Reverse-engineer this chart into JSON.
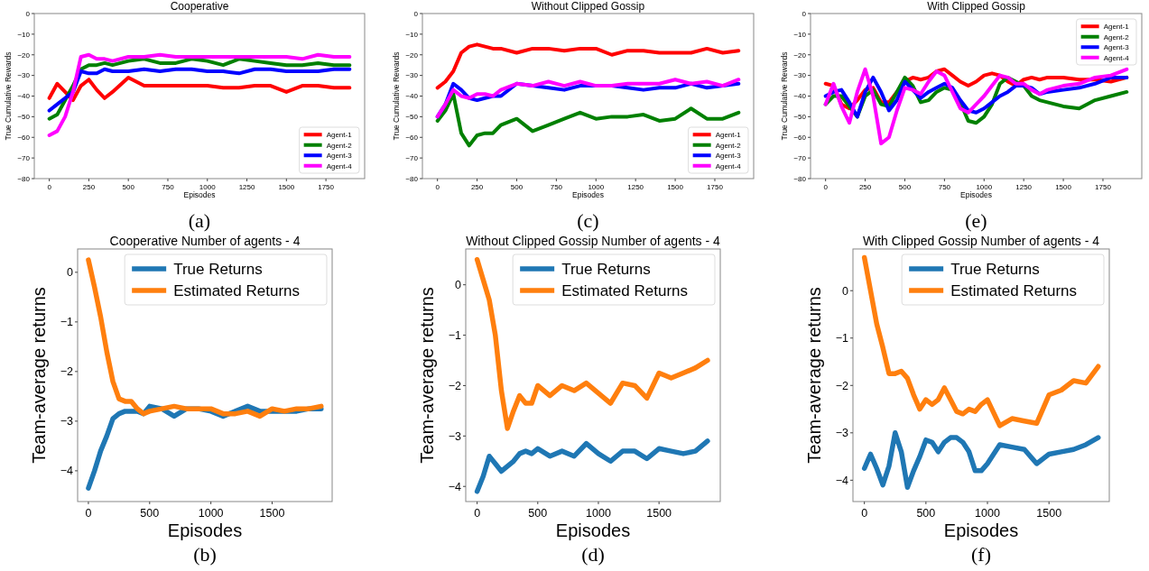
{
  "chart_data": [
    {
      "type": "line",
      "title": "Cooperative",
      "xlabel": "Episodes",
      "ylabel": "True Cumulative Rewards",
      "legend": "bottom right",
      "annotations": [
        "(a)"
      ],
      "xlim": [
        -95,
        1995
      ],
      "xticks": [
        0,
        250,
        500,
        750,
        1000,
        1250,
        1500,
        1750
      ],
      "ylim": [
        -80,
        0
      ],
      "yticks": [
        -80,
        -70,
        -60,
        -50,
        -40,
        -30,
        -20,
        -10,
        0
      ],
      "x": [
        0,
        50,
        100,
        150,
        200,
        250,
        300,
        350,
        400,
        500,
        600,
        700,
        800,
        900,
        1000,
        1100,
        1200,
        1300,
        1400,
        1500,
        1600,
        1700,
        1800,
        1900
      ],
      "series": [
        {
          "name": "Agent-1",
          "color": "#ff0000",
          "values": [
            -41,
            -34,
            -38,
            -42,
            -35,
            -32,
            -37,
            -41,
            -38,
            -31,
            -35,
            -35,
            -35,
            -35,
            -35,
            -36,
            -36,
            -35,
            -35,
            -38,
            -35,
            -35,
            -36,
            -36
          ]
        },
        {
          "name": "Agent-2",
          "color": "#008000",
          "values": [
            -51,
            -49,
            -42,
            -35,
            -27,
            -25,
            -25,
            -24,
            -25,
            -23,
            -22,
            -24,
            -24,
            -22,
            -23,
            -25,
            -22,
            -23,
            -24,
            -25,
            -25,
            -24,
            -25,
            -25
          ]
        },
        {
          "name": "Agent-3",
          "color": "#0000ff",
          "values": [
            -47,
            -44,
            -41,
            -38,
            -28,
            -29,
            -29,
            -27,
            -28,
            -28,
            -27,
            -28,
            -27,
            -27,
            -28,
            -28,
            -29,
            -27,
            -27,
            -28,
            -28,
            -28,
            -27,
            -27
          ]
        },
        {
          "name": "Agent-4",
          "color": "#ff00ff",
          "values": [
            -59,
            -57,
            -50,
            -38,
            -21,
            -20,
            -22,
            -22,
            -23,
            -21,
            -21,
            -20,
            -21,
            -21,
            -21,
            -21,
            -21,
            -21,
            -21,
            -21,
            -22,
            -20,
            -21,
            -21
          ]
        }
      ]
    },
    {
      "type": "line",
      "title": "Without Clipped Gossip",
      "xlabel": "Episodes",
      "ylabel": "True Cumulative Rewards",
      "legend": "bottom right",
      "annotations": [
        "(c)"
      ],
      "xlim": [
        -95,
        1995
      ],
      "xticks": [
        0,
        250,
        500,
        750,
        1000,
        1250,
        1500,
        1750
      ],
      "ylim": [
        -80,
        0
      ],
      "yticks": [
        -80,
        -70,
        -60,
        -50,
        -40,
        -30,
        -20,
        -10,
        0
      ],
      "x": [
        0,
        50,
        100,
        150,
        200,
        250,
        300,
        350,
        400,
        500,
        600,
        700,
        800,
        900,
        1000,
        1100,
        1200,
        1300,
        1400,
        1500,
        1600,
        1700,
        1800,
        1900
      ],
      "series": [
        {
          "name": "Agent-1",
          "color": "#ff0000",
          "values": [
            -36,
            -33,
            -28,
            -19,
            -16,
            -15,
            -16,
            -17,
            -17,
            -19,
            -17,
            -17,
            -18,
            -17,
            -17,
            -20,
            -18,
            -18,
            -19,
            -19,
            -19,
            -17,
            -19,
            -18
          ]
        },
        {
          "name": "Agent-2",
          "color": "#008000",
          "values": [
            -52,
            -47,
            -39,
            -58,
            -64,
            -59,
            -58,
            -58,
            -54,
            -51,
            -57,
            -54,
            -51,
            -48,
            -51,
            -50,
            -50,
            -49,
            -52,
            -51,
            -46,
            -51,
            -51,
            -48
          ]
        },
        {
          "name": "Agent-3",
          "color": "#0000ff",
          "values": [
            -50,
            -44,
            -34,
            -37,
            -41,
            -42,
            -41,
            -40,
            -40,
            -34,
            -35,
            -36,
            -37,
            -35,
            -35,
            -35,
            -36,
            -37,
            -36,
            -36,
            -34,
            -36,
            -35,
            -34
          ]
        },
        {
          "name": "Agent-4",
          "color": "#ff00ff",
          "values": [
            -50,
            -44,
            -37,
            -40,
            -41,
            -39,
            -39,
            -40,
            -37,
            -34,
            -35,
            -33,
            -35,
            -33,
            -35,
            -35,
            -34,
            -34,
            -34,
            -32,
            -34,
            -33,
            -35,
            -32
          ]
        }
      ]
    },
    {
      "type": "line",
      "title": "With Clipped Gossip",
      "xlabel": "Episodes",
      "ylabel": "True Cumulative Rewards",
      "legend": "top right",
      "annotations": [
        "(e)"
      ],
      "xlim": [
        -95,
        1995
      ],
      "xticks": [
        0,
        250,
        500,
        750,
        1000,
        1250,
        1500,
        1750
      ],
      "ylim": [
        -80,
        0
      ],
      "yticks": [
        -80,
        -70,
        -60,
        -50,
        -40,
        -30,
        -20,
        -10,
        0
      ],
      "x": [
        0,
        50,
        100,
        150,
        200,
        250,
        300,
        350,
        400,
        450,
        500,
        550,
        600,
        650,
        700,
        750,
        800,
        850,
        900,
        950,
        1000,
        1050,
        1100,
        1150,
        1200,
        1250,
        1300,
        1350,
        1400,
        1500,
        1600,
        1700,
        1800,
        1900
      ],
      "series": [
        {
          "name": "Agent-1",
          "color": "#ff0000",
          "values": [
            -34,
            -35,
            -44,
            -46,
            -42,
            -37,
            -36,
            -43,
            -43,
            -38,
            -33,
            -31,
            -32,
            -31,
            -28,
            -27,
            -30,
            -33,
            -35,
            -33,
            -30,
            -29,
            -30,
            -33,
            -35,
            -32,
            -31,
            -32,
            -31,
            -31,
            -32,
            -32,
            -33,
            -31
          ]
        },
        {
          "name": "Agent-2",
          "color": "#008000",
          "values": [
            -44,
            -40,
            -40,
            -45,
            -50,
            -40,
            -37,
            -44,
            -45,
            -38,
            -31,
            -35,
            -43,
            -42,
            -38,
            -36,
            -37,
            -43,
            -52,
            -53,
            -50,
            -44,
            -34,
            -31,
            -33,
            -35,
            -40,
            -42,
            -43,
            -45,
            -46,
            -42,
            -40,
            -38
          ]
        },
        {
          "name": "Agent-3",
          "color": "#0000ff",
          "values": [
            -40,
            -38,
            -37,
            -43,
            -50,
            -38,
            -31,
            -38,
            -47,
            -42,
            -33,
            -37,
            -41,
            -38,
            -36,
            -34,
            -36,
            -42,
            -47,
            -48,
            -46,
            -43,
            -40,
            -38,
            -35,
            -35,
            -36,
            -39,
            -38,
            -37,
            -36,
            -34,
            -31,
            -31
          ]
        },
        {
          "name": "Agent-4",
          "color": "#ff00ff",
          "values": [
            -44,
            -34,
            -45,
            -53,
            -38,
            -27,
            -40,
            -63,
            -60,
            -47,
            -36,
            -37,
            -39,
            -33,
            -28,
            -30,
            -38,
            -46,
            -48,
            -44,
            -40,
            -35,
            -30,
            -31,
            -34,
            -34,
            -37,
            -39,
            -37,
            -35,
            -34,
            -31,
            -30,
            -27
          ]
        }
      ]
    },
    {
      "type": "line",
      "title": "Cooperative Number of agents - 4",
      "xlabel": "Episodes",
      "ylabel": "Team-average returns",
      "legend": "top right",
      "annotations": [
        "(b)"
      ],
      "xlim": [
        -88,
        1990
      ],
      "xticks": [
        0,
        500,
        1000,
        1500
      ],
      "ylim": [
        -4.62,
        0.47
      ],
      "yticks": [
        -4,
        -3,
        -2,
        -1,
        0
      ],
      "x": [
        0,
        50,
        100,
        150,
        200,
        250,
        300,
        350,
        400,
        450,
        500,
        600,
        700,
        800,
        900,
        1000,
        1100,
        1200,
        1300,
        1400,
        1500,
        1600,
        1700,
        1800,
        1900
      ],
      "series": [
        {
          "name": "True Returns",
          "color": "#1f77b4",
          "values": [
            -4.35,
            -4.0,
            -3.6,
            -3.3,
            -2.95,
            -2.85,
            -2.8,
            -2.8,
            -2.8,
            -2.85,
            -2.7,
            -2.75,
            -2.9,
            -2.75,
            -2.75,
            -2.8,
            -2.9,
            -2.8,
            -2.7,
            -2.8,
            -2.8,
            -2.8,
            -2.8,
            -2.75,
            -2.75
          ]
        },
        {
          "name": "Estimated Returns",
          "color": "#ff7f0e",
          "values": [
            0.25,
            -0.3,
            -0.9,
            -1.6,
            -2.2,
            -2.55,
            -2.6,
            -2.6,
            -2.75,
            -2.85,
            -2.8,
            -2.75,
            -2.7,
            -2.75,
            -2.75,
            -2.75,
            -2.85,
            -2.85,
            -2.8,
            -2.9,
            -2.75,
            -2.8,
            -2.75,
            -2.75,
            -2.7
          ]
        }
      ]
    },
    {
      "type": "line",
      "title": "Without Clipped Gossip Number of agents - 4",
      "xlabel": "Episodes",
      "ylabel": "Team-average returns",
      "legend": "top right",
      "annotations": [
        "(d)"
      ],
      "xlim": [
        -94,
        2005
      ],
      "xticks": [
        0,
        500,
        1000,
        1500
      ],
      "ylim": [
        -4.3,
        0.71
      ],
      "yticks": [
        -4,
        -3,
        -2,
        -1,
        0
      ],
      "x": [
        0,
        50,
        100,
        150,
        200,
        250,
        300,
        350,
        400,
        450,
        500,
        600,
        700,
        800,
        900,
        1000,
        1100,
        1200,
        1300,
        1400,
        1500,
        1600,
        1700,
        1800,
        1900
      ],
      "series": [
        {
          "name": "True Returns",
          "color": "#1f77b4",
          "values": [
            -4.1,
            -3.8,
            -3.4,
            -3.55,
            -3.7,
            -3.6,
            -3.5,
            -3.35,
            -3.3,
            -3.35,
            -3.25,
            -3.4,
            -3.3,
            -3.4,
            -3.15,
            -3.35,
            -3.5,
            -3.3,
            -3.3,
            -3.45,
            -3.25,
            -3.3,
            -3.35,
            -3.3,
            -3.1
          ]
        },
        {
          "name": "Estimated Returns",
          "color": "#ff7f0e",
          "values": [
            0.5,
            0.1,
            -0.3,
            -1.0,
            -2.1,
            -2.85,
            -2.5,
            -2.2,
            -2.35,
            -2.35,
            -2.0,
            -2.2,
            -2.0,
            -2.1,
            -1.95,
            -2.15,
            -2.35,
            -1.95,
            -2.0,
            -2.25,
            -1.75,
            -1.85,
            -1.75,
            -1.65,
            -1.5
          ]
        }
      ]
    },
    {
      "type": "line",
      "title": "With Clipped Gossip Number of agents - 4",
      "xlabel": "Episodes",
      "ylabel": "Team-average returns",
      "legend": "top right",
      "annotations": [
        "(f)"
      ],
      "xlim": [
        -93,
        1990
      ],
      "xticks": [
        0,
        500,
        1000,
        1500
      ],
      "ylim": [
        -4.45,
        0.88
      ],
      "yticks": [
        -4,
        -3,
        -2,
        -1,
        0
      ],
      "x": [
        0,
        50,
        100,
        150,
        200,
        250,
        300,
        350,
        400,
        450,
        500,
        550,
        600,
        650,
        700,
        750,
        800,
        850,
        900,
        950,
        1000,
        1100,
        1200,
        1300,
        1400,
        1500,
        1600,
        1700,
        1800,
        1900
      ],
      "series": [
        {
          "name": "True Returns",
          "color": "#1f77b4",
          "values": [
            -3.75,
            -3.45,
            -3.75,
            -4.1,
            -3.7,
            -3.0,
            -3.4,
            -4.15,
            -3.8,
            -3.5,
            -3.15,
            -3.2,
            -3.4,
            -3.2,
            -3.1,
            -3.1,
            -3.2,
            -3.4,
            -3.8,
            -3.8,
            -3.65,
            -3.25,
            -3.3,
            -3.35,
            -3.65,
            -3.45,
            -3.4,
            -3.35,
            -3.25,
            -3.1
          ]
        },
        {
          "name": "Estimated Returns",
          "color": "#ff7f0e",
          "values": [
            0.7,
            0.0,
            -0.7,
            -1.2,
            -1.75,
            -1.75,
            -1.7,
            -1.85,
            -2.2,
            -2.5,
            -2.3,
            -2.4,
            -2.3,
            -2.05,
            -2.3,
            -2.55,
            -2.6,
            -2.5,
            -2.55,
            -2.4,
            -2.3,
            -2.85,
            -2.7,
            -2.75,
            -2.8,
            -2.2,
            -2.1,
            -1.9,
            -1.95,
            -1.6
          ]
        }
      ]
    }
  ]
}
